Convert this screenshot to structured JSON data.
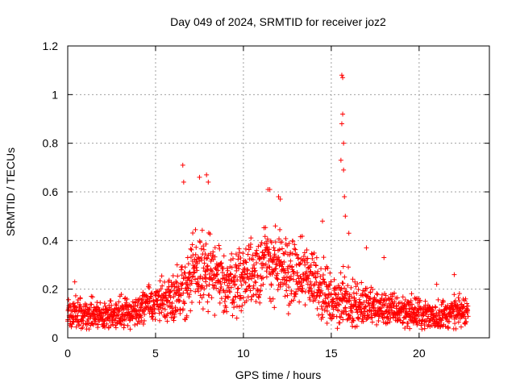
{
  "chart_data": {
    "type": "scatter",
    "title": "Day 049 of 2024, SRMTID for receiver joz2",
    "xlabel": "GPS time / hours",
    "ylabel": "SRMTID / TECUs",
    "xlim": [
      0,
      24
    ],
    "ylim": [
      0,
      1.2
    ],
    "xticks": [
      0,
      5,
      10,
      15,
      20
    ],
    "xtick_labels": [
      "0",
      "5",
      "10",
      "15",
      "20"
    ],
    "yticks": [
      0,
      0.2,
      0.4,
      0.6,
      0.8,
      1,
      1.2
    ],
    "ytick_labels": [
      "0",
      "0.2",
      "0.4",
      "0.6",
      "0.8",
      "1",
      "1.2"
    ],
    "grid": true,
    "marker": "+",
    "color": "#ff0000",
    "series": [
      {
        "name": "SRMTID",
        "envelope_hours": [
          0,
          1,
          2,
          3,
          4,
          5,
          6,
          6.5,
          7,
          7.5,
          8,
          9,
          10,
          11,
          11.5,
          12,
          13,
          14,
          14.5,
          15,
          15.5,
          16,
          17,
          18,
          19,
          20,
          21,
          22,
          22.8
        ],
        "typical_tecu": [
          0.1,
          0.1,
          0.09,
          0.1,
          0.11,
          0.15,
          0.17,
          0.2,
          0.24,
          0.28,
          0.26,
          0.22,
          0.25,
          0.3,
          0.32,
          0.28,
          0.26,
          0.25,
          0.2,
          0.15,
          0.16,
          0.15,
          0.13,
          0.12,
          0.11,
          0.1,
          0.09,
          0.1,
          0.11
        ],
        "spread_tecu": [
          0.05,
          0.05,
          0.04,
          0.05,
          0.05,
          0.06,
          0.07,
          0.1,
          0.12,
          0.12,
          0.12,
          0.09,
          0.1,
          0.12,
          0.12,
          0.11,
          0.1,
          0.1,
          0.09,
          0.07,
          0.08,
          0.08,
          0.06,
          0.05,
          0.05,
          0.05,
          0.05,
          0.05,
          0.05
        ],
        "peaks": [
          {
            "x": 6.55,
            "y": 0.71
          },
          {
            "x": 6.6,
            "y": 0.64
          },
          {
            "x": 7.5,
            "y": 0.66
          },
          {
            "x": 7.9,
            "y": 0.67
          },
          {
            "x": 8.0,
            "y": 0.64
          },
          {
            "x": 11.4,
            "y": 0.61
          },
          {
            "x": 11.5,
            "y": 0.61
          },
          {
            "x": 12.0,
            "y": 0.58
          },
          {
            "x": 12.1,
            "y": 0.57
          },
          {
            "x": 14.5,
            "y": 0.48
          },
          {
            "x": 15.55,
            "y": 0.73
          },
          {
            "x": 15.6,
            "y": 0.88
          },
          {
            "x": 15.6,
            "y": 1.08
          },
          {
            "x": 15.65,
            "y": 1.07
          },
          {
            "x": 15.65,
            "y": 0.92
          },
          {
            "x": 15.7,
            "y": 0.8
          },
          {
            "x": 15.7,
            "y": 0.69
          },
          {
            "x": 15.75,
            "y": 0.58
          },
          {
            "x": 15.8,
            "y": 0.5
          },
          {
            "x": 16.0,
            "y": 0.43
          },
          {
            "x": 17.0,
            "y": 0.37
          },
          {
            "x": 18.0,
            "y": 0.33
          },
          {
            "x": 21.0,
            "y": 0.22
          },
          {
            "x": 22.0,
            "y": 0.26
          },
          {
            "x": 0.4,
            "y": 0.23
          }
        ]
      }
    ]
  }
}
